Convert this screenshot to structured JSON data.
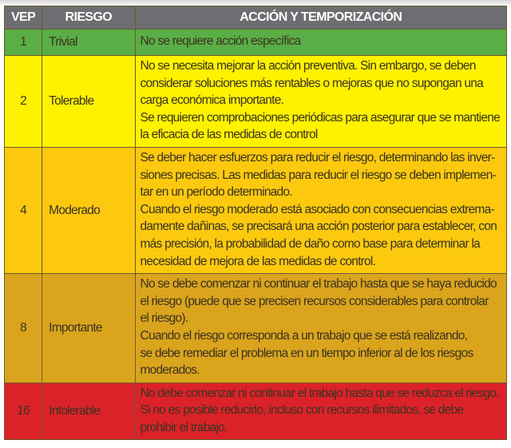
{
  "header": {
    "vep": "VEP",
    "riesgo": "RIESGO",
    "accion": "ACCIÓN Y TEMPORIZACIÓN"
  },
  "rows": [
    {
      "vep": "1",
      "riesgo": "Trivial",
      "color": "#5aae46",
      "lines": [
        "No se requiere acción específica"
      ]
    },
    {
      "vep": "2",
      "riesgo": "Tolerable",
      "color": "#fff200",
      "lines": [
        "No se necesita mejorar la acción preventiva. Sin embargo, se deben",
        "considerar soluciones más rentables o mejoras que no supongan una",
        "carga económica importante.",
        "Se requieren comprobaciones periódicas para asegurar que se mantiene",
        "la eficacia de las medidas de control"
      ]
    },
    {
      "vep": "4",
      "riesgo": "Moderado",
      "color": "#fcc90f",
      "lines": [
        "Se deber hacer esfuerzos para reducir el riesgo, determinando las inver-",
        "siones precisas. Las medidas para reducir el riesgo se deben implemen-",
        "tar en un período determinado.",
        "Cuando el riesgo moderado está asociado con consecuencias extrema-",
        "damente dañinas, se precisará una acción posterior para establecer, con",
        "más precisión, la probabilidad de daño como base para determinar la",
        "necesidad de mejora de las medidas de control."
      ]
    },
    {
      "vep": "8",
      "riesgo": "Importante",
      "color": "#daa41d",
      "lines": [
        "No se debe comenzar ni continuar el trabajo hasta que se haya reducido",
        "el riesgo (puede que se precisen recursos considerables para controlar",
        "el riesgo).",
        "Cuando el riesgo corresponda a un trabajo que se está realizando,",
        "se debe remediar el problema en un tiempo inferior al de los riesgos",
        "moderados."
      ]
    },
    {
      "vep": "16",
      "riesgo": "Intolerable",
      "color": "#dc2229",
      "lines": [
        "No debe comenzar ni continuar el trabajo hasta que se reduzca el riesgo.",
        "Si no es posible reducirlo, incluso con recursos ilimitados, se debe",
        "prohibir el trabajo."
      ]
    }
  ]
}
